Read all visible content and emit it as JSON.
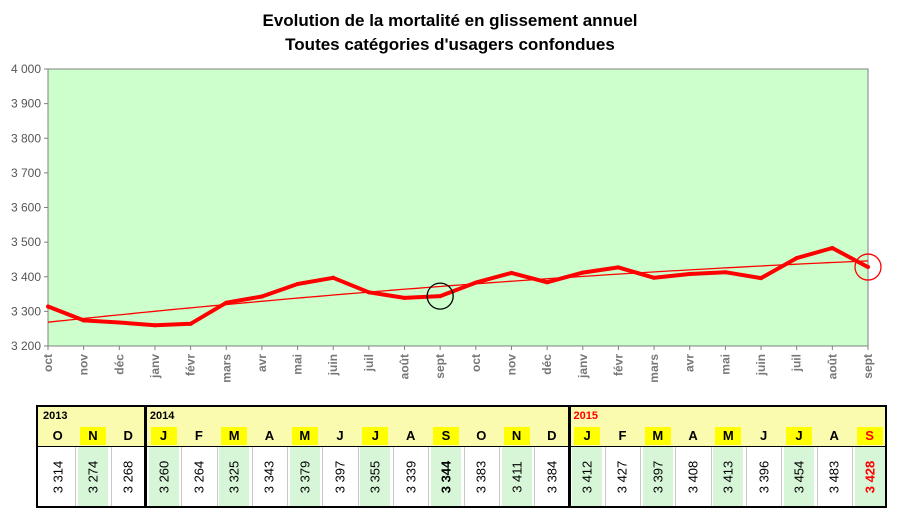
{
  "chart_data": {
    "type": "line",
    "title": "Evolution de la mortalité en glissement annuel",
    "subtitle": "Toutes catégories d'usagers confondues",
    "xlabel": "",
    "ylabel": "",
    "ylim": [
      3200,
      4000
    ],
    "yticks": [
      3200,
      3300,
      3400,
      3500,
      3600,
      3700,
      3800,
      3900,
      4000
    ],
    "ytick_labels": [
      "3 200",
      "3 300",
      "3 400",
      "3 500",
      "3 600",
      "3 700",
      "3 800",
      "3 900",
      "4 000"
    ],
    "categories": [
      "oct",
      "nov",
      "déc",
      "janv",
      "févr",
      "mars",
      "avr",
      "mai",
      "juin",
      "juil",
      "août",
      "sept",
      "oct",
      "nov",
      "déc",
      "janv",
      "févr",
      "mars",
      "avr",
      "mai",
      "juin",
      "juil",
      "août",
      "sept"
    ],
    "series": [
      {
        "values": [
          3314,
          3274,
          3268,
          3260,
          3264,
          3325,
          3343,
          3379,
          3397,
          3355,
          3339,
          3344,
          3383,
          3411,
          3384,
          3412,
          3427,
          3397,
          3408,
          3413,
          3396,
          3454,
          3483,
          3428
        ],
        "color": "#ff0000"
      }
    ],
    "trend": {
      "type": "polynomial",
      "color": "#ff0000"
    },
    "highlights": [
      {
        "index": 11,
        "color": "#000000"
      },
      {
        "index": 23,
        "color": "#ff0000"
      }
    ],
    "grid": false,
    "plot_background": "#ccffcc",
    "table": {
      "years": [
        {
          "label": "2013",
          "color": "#000000"
        },
        {
          "label": "2014",
          "color": "#000000"
        },
        {
          "label": "2015",
          "color": "#ff0000"
        }
      ],
      "month_letters": [
        "O",
        "N",
        "D",
        "J",
        "F",
        "M",
        "A",
        "M",
        "J",
        "J",
        "A",
        "S",
        "O",
        "N",
        "D",
        "J",
        "F",
        "M",
        "A",
        "M",
        "J",
        "J",
        "A",
        "S"
      ],
      "values": [
        "3 314",
        "3 274",
        "3 268",
        "3 260",
        "3 264",
        "3 325",
        "3 343",
        "3 379",
        "3 397",
        "3 355",
        "3 339",
        "3 344",
        "3 383",
        "3 411",
        "3 384",
        "3 412",
        "3 427",
        "3 397",
        "3 408",
        "3 413",
        "3 396",
        "3 454",
        "3 483",
        "3 428"
      ]
    }
  }
}
